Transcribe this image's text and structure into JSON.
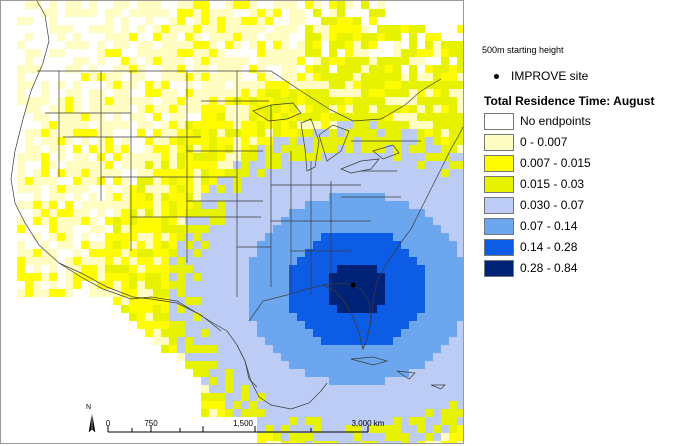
{
  "legend": {
    "subtitle": "500m starting height",
    "site_label": "IMPROVE site",
    "title": "Total Residence Time: August",
    "classes": [
      {
        "label": "No endpoints",
        "color": "#ffffff"
      },
      {
        "label": "0 - 0.007",
        "color": "#fffdc2"
      },
      {
        "label": "0.007 - 0.015",
        "color": "#fffb00"
      },
      {
        "label": "0.015 - 0.03",
        "color": "#e6f200"
      },
      {
        "label": "0.030 - 0.07",
        "color": "#bcccf4"
      },
      {
        "label": "0.07 - 0.14",
        "color": "#6ba6ef"
      },
      {
        "label": "0.14 - 0.28",
        "color": "#0d5ce6"
      },
      {
        "label": "0.28 - 0.84",
        "color": "#002277"
      }
    ]
  },
  "scalebar": {
    "north": "N",
    "ticks": [
      "0",
      "750",
      "1,500",
      "3,000 km"
    ]
  }
}
